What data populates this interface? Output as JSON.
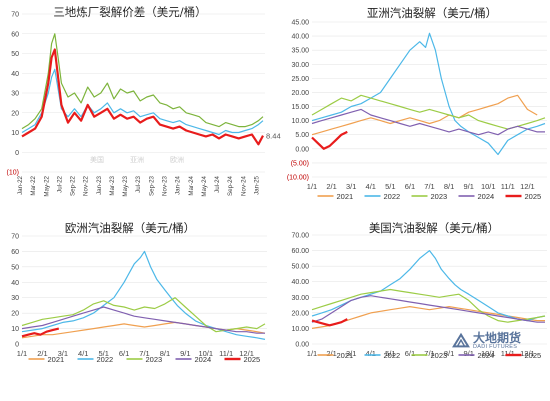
{
  "watermark": {
    "name_cn": "大地期货",
    "name_en": "DADI FUTURES"
  },
  "chart_data": [
    {
      "type": "line",
      "title": "三地炼厂裂解价差（美元/桶）",
      "ylim": [
        -10,
        70
      ],
      "yticks": [
        "(10)",
        "0",
        "10",
        "20",
        "30",
        "40",
        "50",
        "60",
        "70"
      ],
      "xticks": [
        "Jan-22",
        "Mar-22",
        "May-22",
        "Jul-22",
        "Sep-22",
        "Nov-22",
        "Jan-23",
        "Mar-23",
        "May-23",
        "Jul-23",
        "Sep-23",
        "Nov-23",
        "Jan-24",
        "Mar-24",
        "May-24",
        "Jul-24",
        "Sep-24",
        "Nov-24",
        "Jan-25"
      ],
      "annotation": "8.44",
      "legend_faint": [
        "美国",
        "亚洲",
        "欧洲"
      ],
      "series": [
        {
          "color": "#7db43c",
          "x": [
            0,
            1,
            2,
            3,
            4,
            4.5,
            5,
            5.5,
            6,
            7,
            8,
            9,
            10,
            11,
            12,
            13,
            14,
            15,
            16,
            17,
            18,
            19,
            20,
            21,
            22,
            23,
            24,
            25,
            26,
            27,
            28,
            29,
            30,
            31,
            32,
            33,
            34,
            35,
            36,
            36.7
          ],
          "values": [
            12,
            14,
            17,
            22,
            40,
            55,
            60,
            48,
            35,
            28,
            30,
            25,
            33,
            28,
            30,
            35,
            27,
            32,
            30,
            31,
            26,
            28,
            29,
            25,
            24,
            22,
            23,
            20,
            19,
            18,
            15,
            14,
            13,
            15,
            14,
            13,
            13,
            14,
            16,
            18
          ]
        },
        {
          "color": "#4db8e8",
          "x": [
            0,
            1,
            2,
            3,
            4,
            4.5,
            5,
            5.5,
            6,
            7,
            8,
            9,
            10,
            11,
            12,
            13,
            14,
            15,
            16,
            17,
            18,
            19,
            20,
            21,
            22,
            23,
            24,
            25,
            26,
            27,
            28,
            29,
            30,
            31,
            32,
            33,
            34,
            35,
            36,
            36.7
          ],
          "values": [
            10,
            12,
            14,
            20,
            30,
            38,
            42,
            32,
            22,
            18,
            22,
            18,
            24,
            20,
            22,
            25,
            20,
            22,
            20,
            21,
            18,
            19,
            20,
            17,
            16,
            15,
            16,
            14,
            13,
            12,
            11,
            10,
            9,
            11,
            10,
            10,
            11,
            12,
            14,
            16
          ]
        },
        {
          "color": "#e81c1c",
          "x": [
            0,
            1,
            2,
            3,
            4,
            4.5,
            5,
            5.5,
            6,
            7,
            8,
            9,
            10,
            11,
            12,
            13,
            14,
            15,
            16,
            17,
            18,
            19,
            20,
            21,
            22,
            23,
            24,
            25,
            26,
            27,
            28,
            29,
            30,
            31,
            32,
            33,
            34,
            35,
            36,
            36.7
          ],
          "values": [
            8,
            10,
            12,
            18,
            35,
            48,
            52,
            38,
            24,
            15,
            20,
            16,
            24,
            18,
            20,
            22,
            17,
            19,
            17,
            18,
            15,
            17,
            18,
            14,
            13,
            12,
            13,
            11,
            10,
            9,
            8,
            9,
            7,
            9,
            8,
            7,
            8,
            9,
            4,
            8.44
          ]
        }
      ]
    },
    {
      "type": "line",
      "title": "亚洲汽油裂解（美元/桶）",
      "ylim": [
        -10,
        45
      ],
      "yticks": [
        "(10.00)",
        "(5.00)",
        "0.00",
        "5.00",
        "10.00",
        "15.00",
        "20.00",
        "25.00",
        "30.00",
        "35.00",
        "40.00",
        "45.00"
      ],
      "xticks": [
        "1/1",
        "2/1",
        "3/1",
        "4/1",
        "5/1",
        "6/1",
        "7/1",
        "8/1",
        "9/1",
        "10/1",
        "11/1",
        "12/1"
      ],
      "series": [
        {
          "name": "2021",
          "color": "#f0a050",
          "x": [
            0,
            0.5,
            1,
            1.5,
            2,
            2.5,
            3,
            3.5,
            4,
            4.5,
            5,
            5.5,
            6,
            6.5,
            7,
            7.5,
            8,
            8.5,
            9,
            9.5,
            10,
            10.5,
            11,
            11.5
          ],
          "values": [
            5,
            6,
            7,
            8,
            9,
            10,
            11,
            10,
            9,
            10,
            11,
            10,
            9,
            10,
            12,
            11,
            13,
            14,
            15,
            16,
            18,
            19,
            14,
            12
          ]
        },
        {
          "name": "2022",
          "color": "#4db8e8",
          "x": [
            0,
            0.5,
            1,
            1.5,
            2,
            2.5,
            3,
            3.5,
            4,
            4.5,
            5,
            5.5,
            5.8,
            6,
            6.3,
            6.6,
            7,
            7.3,
            7.6,
            8,
            8.5,
            9,
            9.5,
            10,
            10.5,
            11,
            11.5,
            11.9
          ],
          "values": [
            10,
            11,
            12,
            13,
            15,
            16,
            18,
            20,
            25,
            30,
            35,
            38,
            36,
            41,
            35,
            25,
            15,
            10,
            8,
            6,
            4,
            2,
            -2,
            3,
            5,
            7,
            8,
            9
          ]
        },
        {
          "name": "2023",
          "color": "#9ccc46",
          "x": [
            0,
            0.5,
            1,
            1.5,
            2,
            2.5,
            3,
            3.5,
            4,
            4.5,
            5,
            5.5,
            6,
            6.5,
            7,
            7.5,
            8,
            8.5,
            9,
            9.5,
            10,
            10.5,
            11,
            11.5,
            11.9
          ],
          "values": [
            12,
            14,
            16,
            18,
            17,
            19,
            18,
            17,
            16,
            15,
            14,
            13,
            14,
            13,
            12,
            11,
            12,
            10,
            9,
            8,
            7,
            8,
            9,
            10,
            11
          ]
        },
        {
          "name": "2024",
          "color": "#8060b0",
          "x": [
            0,
            0.5,
            1,
            1.5,
            2,
            2.5,
            3,
            3.5,
            4,
            4.5,
            5,
            5.5,
            6,
            6.5,
            7,
            7.5,
            8,
            8.5,
            9,
            9.5,
            10,
            10.5,
            11,
            11.5,
            11.9
          ],
          "values": [
            9,
            10,
            11,
            12,
            13,
            14,
            12,
            11,
            10,
            9,
            8,
            9,
            8,
            7,
            6,
            7,
            6,
            5,
            6,
            5,
            7,
            8,
            7,
            6,
            6
          ]
        },
        {
          "name": "2025",
          "color": "#e81c1c",
          "x": [
            0,
            0.3,
            0.6,
            0.9,
            1.2,
            1.5,
            1.8
          ],
          "values": [
            4,
            2,
            0,
            1,
            3,
            5,
            6
          ]
        }
      ]
    },
    {
      "type": "line",
      "title": "欧洲汽油裂解（美元/桶）",
      "ylim": [
        0,
        70
      ],
      "yticks": [
        "0",
        "10",
        "20",
        "30",
        "40",
        "50",
        "60",
        "70"
      ],
      "xticks": [
        "1/1",
        "2/1",
        "3/1",
        "4/1",
        "5/1",
        "6/1",
        "7/1",
        "8/1",
        "9/1",
        "10/1",
        "11/1",
        "12/1"
      ],
      "series": [
        {
          "name": "2021",
          "color": "#f0a050",
          "x": [
            0,
            0.5,
            1,
            1.5,
            2,
            2.5,
            3,
            3.5,
            4,
            4.5,
            5,
            5.5,
            6,
            6.5,
            7,
            7.5,
            8,
            8.5,
            9,
            9.5,
            10,
            10.5,
            11,
            11.5,
            11.9
          ],
          "values": [
            4,
            5,
            6,
            6,
            7,
            8,
            9,
            10,
            11,
            12,
            13,
            12,
            11,
            12,
            13,
            14,
            13,
            12,
            11,
            10,
            9,
            10,
            9,
            8,
            7
          ]
        },
        {
          "name": "2022",
          "color": "#4db8e8",
          "x": [
            0,
            0.5,
            1,
            1.5,
            2,
            2.5,
            3,
            3.5,
            4,
            4.5,
            5,
            5.5,
            5.8,
            6,
            6.3,
            6.6,
            7,
            7.3,
            7.6,
            8,
            8.5,
            9,
            9.5,
            10,
            10.5,
            11,
            11.5,
            11.9
          ],
          "values": [
            8,
            9,
            10,
            12,
            14,
            15,
            17,
            20,
            25,
            30,
            40,
            52,
            56,
            60,
            50,
            42,
            35,
            30,
            25,
            20,
            15,
            12,
            10,
            8,
            6,
            5,
            4,
            3
          ]
        },
        {
          "name": "2023",
          "color": "#9ccc46",
          "x": [
            0,
            0.5,
            1,
            1.5,
            2,
            2.5,
            3,
            3.5,
            4,
            4.5,
            5,
            5.5,
            6,
            6.5,
            7,
            7.5,
            8,
            8.5,
            9,
            9.5,
            10,
            10.5,
            11,
            11.5,
            11.9
          ],
          "values": [
            12,
            14,
            16,
            17,
            18,
            19,
            22,
            26,
            28,
            25,
            24,
            22,
            24,
            23,
            26,
            30,
            24,
            18,
            12,
            8,
            9,
            10,
            11,
            10,
            13
          ]
        },
        {
          "name": "2024",
          "color": "#8060b0",
          "x": [
            0,
            0.5,
            1,
            1.5,
            2,
            2.5,
            3,
            3.5,
            4,
            4.5,
            5,
            5.5,
            6,
            6.5,
            7,
            7.5,
            8,
            8.5,
            9,
            9.5,
            10,
            10.5,
            11,
            11.5,
            11.9
          ],
          "values": [
            10,
            11,
            12,
            14,
            16,
            18,
            20,
            22,
            24,
            22,
            20,
            18,
            17,
            16,
            15,
            14,
            13,
            12,
            11,
            10,
            9,
            8,
            8,
            7,
            7
          ]
        },
        {
          "name": "2025",
          "color": "#e81c1c",
          "x": [
            0,
            0.3,
            0.6,
            0.9,
            1.2,
            1.5,
            1.8
          ],
          "values": [
            5,
            6,
            7,
            6,
            8,
            9,
            10
          ]
        }
      ]
    },
    {
      "type": "line",
      "title": "美国汽油裂解（美元/桶）",
      "ylim": [
        0,
        70
      ],
      "yticks": [
        "0.00",
        "10.00",
        "20.00",
        "30.00",
        "40.00",
        "50.00",
        "60.00",
        "70.00"
      ],
      "xticks": [
        "1/1",
        "2/1",
        "3/1",
        "4/1",
        "5/1",
        "6/1",
        "7/1",
        "8/1",
        "9/1",
        "10/1",
        "11/1",
        "12/1"
      ],
      "series": [
        {
          "name": "2021",
          "color": "#f0a050",
          "x": [
            0,
            0.5,
            1,
            1.5,
            2,
            2.5,
            3,
            3.5,
            4,
            4.5,
            5,
            5.5,
            6,
            6.5,
            7,
            7.5,
            8,
            8.5,
            9,
            9.5,
            10,
            10.5,
            11,
            11.5,
            11.9
          ],
          "values": [
            10,
            11,
            12,
            14,
            16,
            18,
            20,
            21,
            22,
            23,
            24,
            23,
            22,
            23,
            24,
            23,
            22,
            21,
            20,
            19,
            18,
            17,
            16,
            15,
            15
          ]
        },
        {
          "name": "2022",
          "color": "#4db8e8",
          "x": [
            0,
            0.5,
            1,
            1.5,
            2,
            2.5,
            3,
            3.5,
            4,
            4.5,
            5,
            5.5,
            5.8,
            6,
            6.3,
            6.6,
            7,
            7.3,
            7.6,
            8,
            8.5,
            9,
            9.5,
            10,
            10.5,
            11,
            11.5,
            11.9
          ],
          "values": [
            18,
            20,
            22,
            25,
            28,
            30,
            32,
            34,
            38,
            42,
            48,
            55,
            58,
            60,
            55,
            48,
            42,
            38,
            35,
            32,
            28,
            24,
            20,
            18,
            16,
            15,
            17,
            18
          ]
        },
        {
          "name": "2023",
          "color": "#9ccc46",
          "x": [
            0,
            0.5,
            1,
            1.5,
            2,
            2.5,
            3,
            3.5,
            4,
            4.5,
            5,
            5.5,
            6,
            6.5,
            7,
            7.5,
            8,
            8.5,
            9,
            9.5,
            10,
            10.5,
            11,
            11.5,
            11.9
          ],
          "values": [
            22,
            24,
            26,
            28,
            30,
            32,
            33,
            34,
            35,
            34,
            33,
            32,
            31,
            30,
            31,
            32,
            28,
            22,
            18,
            15,
            14,
            15,
            16,
            17,
            18
          ]
        },
        {
          "name": "2024",
          "color": "#8060b0",
          "x": [
            0,
            0.5,
            1,
            1.5,
            2,
            2.5,
            3,
            3.5,
            4,
            4.5,
            5,
            5.5,
            6,
            6.5,
            7,
            7.5,
            8,
            8.5,
            9,
            9.5,
            10,
            10.5,
            11,
            11.5,
            11.9
          ],
          "values": [
            14,
            16,
            20,
            24,
            28,
            30,
            31,
            30,
            29,
            28,
            27,
            26,
            25,
            24,
            23,
            22,
            21,
            20,
            19,
            18,
            17,
            16,
            15,
            14,
            14
          ]
        },
        {
          "name": "2025",
          "color": "#e81c1c",
          "x": [
            0,
            0.3,
            0.6,
            0.9,
            1.2,
            1.5,
            1.8
          ],
          "values": [
            15,
            14,
            13,
            12,
            13,
            14,
            16
          ]
        }
      ]
    }
  ]
}
